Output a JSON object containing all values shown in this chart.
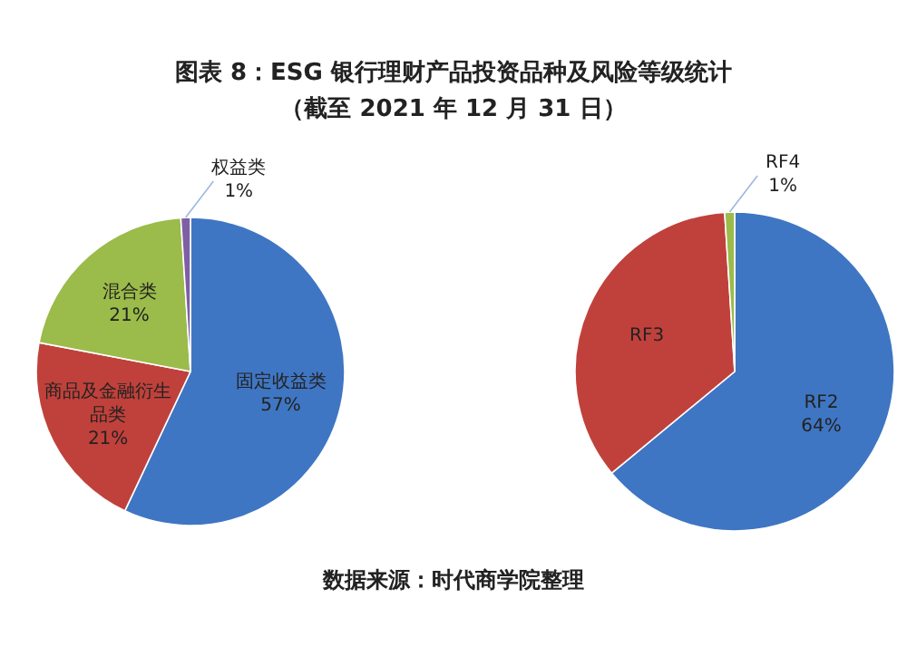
{
  "chart_data": [
    {
      "type": "pie",
      "title": "图表 8：ESG 银行理财产品投资品种及风险等级统计",
      "subtitle": "（截至 2021 年 12 月 31 日）",
      "categories": [
        "固定收益类",
        "商品及金融衍生品类",
        "混合类",
        "权益类"
      ],
      "values": [
        57,
        21,
        21,
        1
      ],
      "value_labels": [
        "57%",
        "21%",
        "21%",
        "1%"
      ],
      "colors": [
        "#3f76c3",
        "#c0413b",
        "#9bbb4a",
        "#7e5fa5"
      ]
    },
    {
      "type": "pie",
      "categories": [
        "RF2",
        "RF3",
        "RF4"
      ],
      "values": [
        64,
        35,
        1
      ],
      "value_labels": [
        "64%",
        null,
        "1%"
      ],
      "colors": [
        "#3f76c3",
        "#c0413b",
        "#9bbb4a"
      ],
      "annotations": [
        "数据来源：时代商学院整理"
      ]
    }
  ]
}
